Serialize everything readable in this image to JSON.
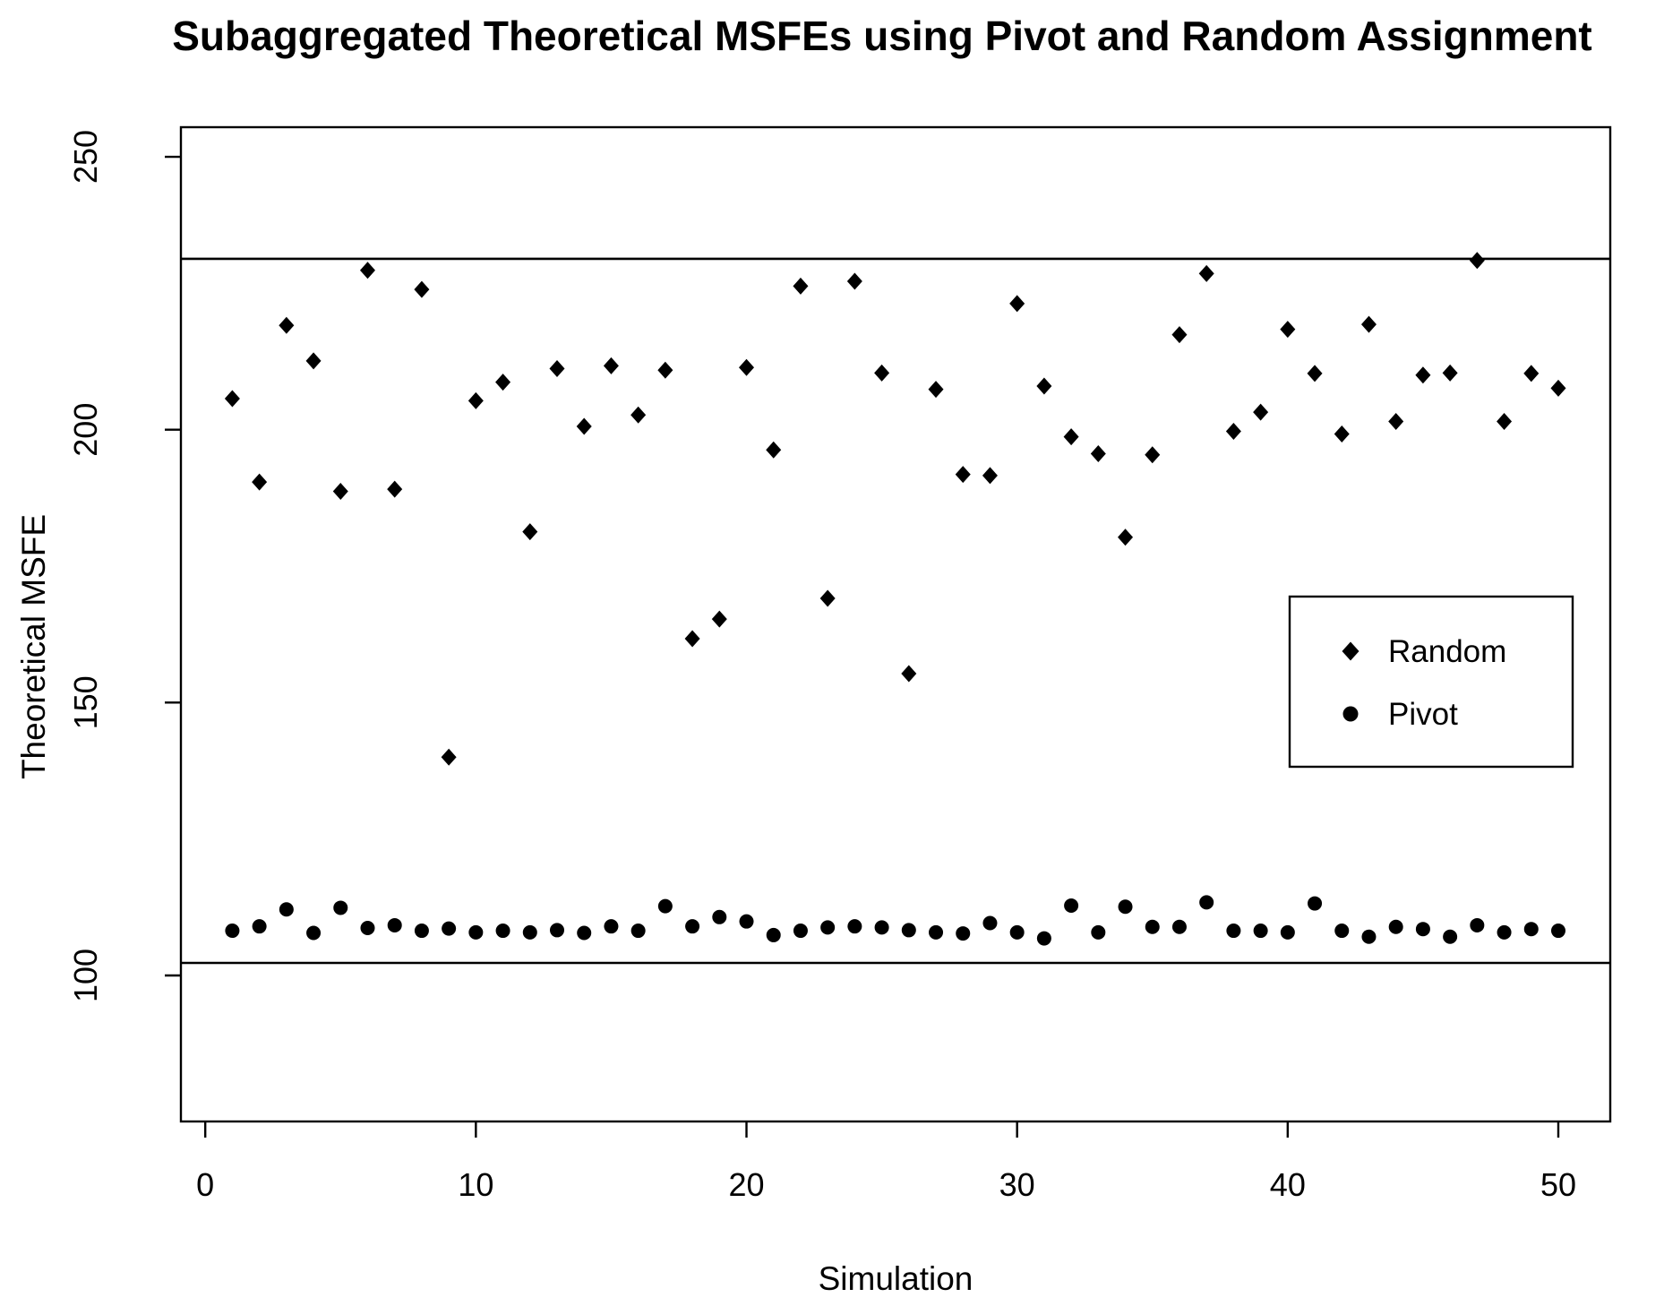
{
  "title": "Subaggregated Theoretical MSFEs using Pivot and Random Assignment",
  "axes": {
    "xlabel": "Simulation",
    "ylabel": "Theoretical MSFE",
    "x_ticks": [
      0,
      10,
      20,
      30,
      40,
      50
    ],
    "y_ticks": [
      100,
      150,
      200,
      250
    ],
    "xlim": [
      -0.9,
      51.92
    ],
    "ylim": [
      73.25,
      255.42
    ],
    "grid": "off"
  },
  "reference_lines": [
    231.3,
    102.3
  ],
  "colors": {
    "points": "#000000",
    "axis": "#000000",
    "background": "#ffffff"
  },
  "legend": {
    "position": "right-middle",
    "items": [
      {
        "label": "Random",
        "marker": "diamond"
      },
      {
        "label": "Pivot",
        "marker": "circle"
      }
    ]
  },
  "chart_data": {
    "type": "scatter",
    "title": "Subaggregated Theoretical MSFEs using Pivot and Random Assignment",
    "xlabel": "Simulation",
    "ylabel": "Theoretical MSFE",
    "x": [
      1,
      2,
      3,
      4,
      5,
      6,
      7,
      8,
      9,
      10,
      11,
      12,
      13,
      14,
      15,
      16,
      17,
      18,
      19,
      20,
      21,
      22,
      23,
      24,
      25,
      26,
      27,
      28,
      29,
      30,
      31,
      32,
      33,
      34,
      35,
      36,
      37,
      38,
      39,
      40,
      41,
      42,
      43,
      44,
      45,
      46,
      47,
      48,
      49,
      50
    ],
    "series": [
      {
        "name": "Random",
        "marker": "diamond",
        "values": [
          205.7,
          190.4,
          219.1,
          212.6,
          188.7,
          229.2,
          189.1,
          225.7,
          140.0,
          205.3,
          208.7,
          181.3,
          211.2,
          200.6,
          211.7,
          202.7,
          210.9,
          161.7,
          165.3,
          211.4,
          196.3,
          226.3,
          169.1,
          227.2,
          210.4,
          155.3,
          207.4,
          191.8,
          191.6,
          223.1,
          208.0,
          198.7,
          195.6,
          180.3,
          195.4,
          217.4,
          228.6,
          199.7,
          203.2,
          218.4,
          210.3,
          199.2,
          219.3,
          201.5,
          210.0,
          210.4,
          231.0,
          201.5,
          210.3,
          207.6
        ]
      },
      {
        "name": "Pivot",
        "marker": "circle",
        "values": [
          108.2,
          109.0,
          112.1,
          107.8,
          112.4,
          108.7,
          109.2,
          108.2,
          108.6,
          107.9,
          108.2,
          107.9,
          108.3,
          107.8,
          109.0,
          108.2,
          112.7,
          109.0,
          110.7,
          109.9,
          107.4,
          108.2,
          108.8,
          109.0,
          108.8,
          108.3,
          107.9,
          107.7,
          109.6,
          107.9,
          106.8,
          112.8,
          107.9,
          112.6,
          108.9,
          108.9,
          113.4,
          108.2,
          108.2,
          107.9,
          113.2,
          108.2,
          107.1,
          108.9,
          108.5,
          107.1,
          109.2,
          107.9,
          108.5,
          108.2
        ]
      }
    ]
  }
}
